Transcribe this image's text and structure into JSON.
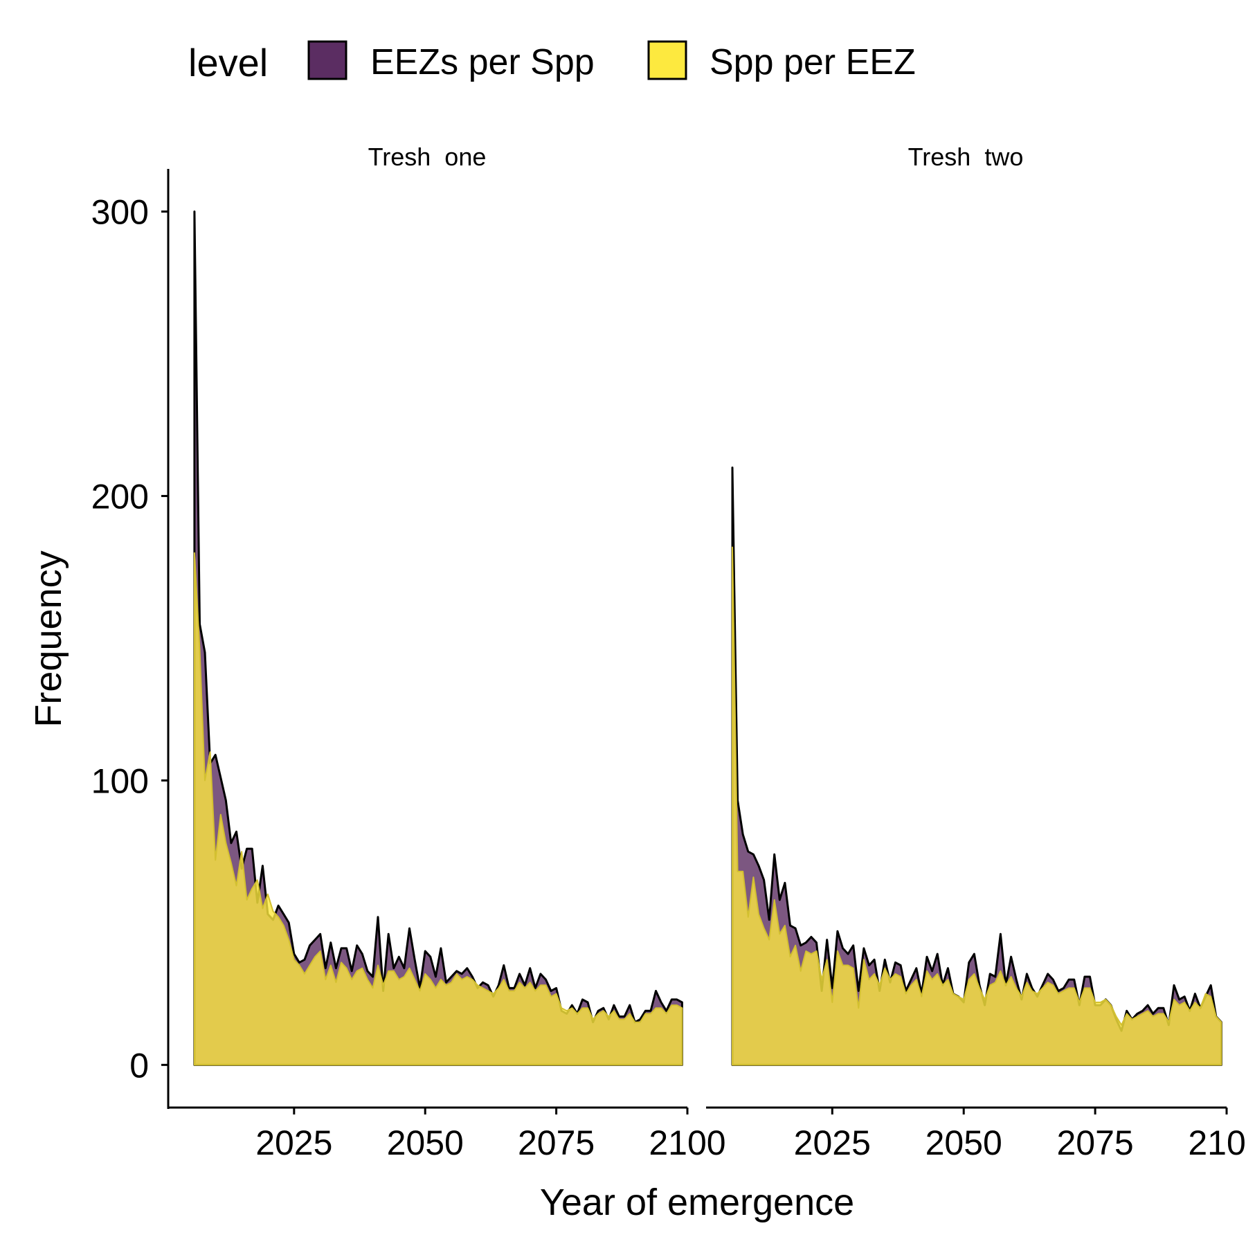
{
  "legend": {
    "title": "level",
    "items": [
      {
        "label": "EEZs per Spp",
        "color": "#5b2d62"
      },
      {
        "label": "Spp per EEZ",
        "color": "#fde93f"
      }
    ]
  },
  "chart_data": {
    "type": "area",
    "xlabel": "Year of emergence",
    "ylabel": "Frequency",
    "xlim": [
      2001,
      2100
    ],
    "ylim": [
      -15,
      315
    ],
    "x_ticks": [
      2025,
      2050,
      2075,
      2100
    ],
    "y_ticks": [
      0,
      100,
      200,
      300
    ],
    "grid": false,
    "legend_position": "top",
    "panels": [
      {
        "name": "Tresh  one",
        "x": [
          2006,
          2007,
          2008,
          2009,
          2010,
          2011,
          2012,
          2013,
          2014,
          2015,
          2016,
          2017,
          2018,
          2019,
          2020,
          2021,
          2022,
          2023,
          2024,
          2025,
          2026,
          2027,
          2028,
          2029,
          2030,
          2031,
          2032,
          2033,
          2034,
          2035,
          2036,
          2037,
          2038,
          2039,
          2040,
          2041,
          2042,
          2043,
          2044,
          2045,
          2046,
          2047,
          2048,
          2049,
          2050,
          2051,
          2052,
          2053,
          2054,
          2055,
          2056,
          2057,
          2058,
          2059,
          2060,
          2061,
          2062,
          2063,
          2064,
          2065,
          2066,
          2067,
          2068,
          2069,
          2070,
          2071,
          2072,
          2073,
          2074,
          2075,
          2076,
          2077,
          2078,
          2079,
          2080,
          2081,
          2082,
          2083,
          2084,
          2085,
          2086,
          2087,
          2088,
          2089,
          2090,
          2091,
          2092,
          2093,
          2094,
          2095,
          2096,
          2097,
          2098,
          2099
        ],
        "series": [
          {
            "name": "EEZs per Spp",
            "values": [
              300,
              155,
              145,
              106,
              109,
              101,
              93,
              78,
              82,
              69,
              76,
              76,
              57,
              70,
              53,
              51,
              56,
              53,
              50,
              39,
              36,
              37,
              42,
              44,
              46,
              34,
              43,
              34,
              41,
              41,
              33,
              42,
              39,
              33,
              31,
              52,
              26,
              46,
              34,
              38,
              34,
              48,
              37,
              27,
              40,
              38,
              31,
              41,
              29,
              31,
              33,
              32,
              34,
              31,
              27,
              29,
              28,
              24,
              28,
              35,
              27,
              27,
              32,
              28,
              34,
              27,
              32,
              30,
              26,
              27,
              19,
              18,
              21,
              18,
              23,
              22,
              15,
              19,
              20,
              16,
              21,
              17,
              17,
              21,
              15,
              16,
              19,
              19,
              26,
              22,
              19,
              23,
              23,
              22
            ]
          },
          {
            "name": "Spp per EEZ",
            "values": [
              180,
              146,
              100,
              110,
              72,
              88,
              78,
              71,
              63,
              75,
              58,
              62,
              65,
              55,
              60,
              54,
              52,
              49,
              44,
              37,
              35,
              32,
              35,
              38,
              40,
              30,
              35,
              29,
              36,
              34,
              30,
              33,
              34,
              30,
              27,
              35,
              28,
              33,
              33,
              30,
              31,
              34,
              30,
              26,
              32,
              30,
              27,
              30,
              28,
              29,
              32,
              30,
              31,
              30,
              28,
              27,
              26,
              25,
              27,
              30,
              26,
              26,
              29,
              27,
              29,
              26,
              28,
              28,
              24,
              25,
              20,
              19,
              20,
              18,
              20,
              20,
              16,
              18,
              19,
              17,
              19,
              16,
              16,
              18,
              15,
              15,
              18,
              18,
              20,
              20,
              18,
              21,
              21,
              20
            ]
          }
        ]
      },
      {
        "name": "Tresh  two",
        "x": [
          2006,
          2007,
          2008,
          2009,
          2010,
          2011,
          2012,
          2013,
          2014,
          2015,
          2016,
          2017,
          2018,
          2019,
          2020,
          2021,
          2022,
          2023,
          2024,
          2025,
          2026,
          2027,
          2028,
          2029,
          2030,
          2031,
          2032,
          2033,
          2034,
          2035,
          2036,
          2037,
          2038,
          2039,
          2040,
          2041,
          2042,
          2043,
          2044,
          2045,
          2046,
          2047,
          2048,
          2049,
          2050,
          2051,
          2052,
          2053,
          2054,
          2055,
          2056,
          2057,
          2058,
          2059,
          2060,
          2061,
          2062,
          2063,
          2064,
          2065,
          2066,
          2067,
          2068,
          2069,
          2070,
          2071,
          2072,
          2073,
          2074,
          2075,
          2076,
          2077,
          2078,
          2079,
          2080,
          2081,
          2082,
          2083,
          2084,
          2085,
          2086,
          2087,
          2088,
          2089,
          2090,
          2091,
          2092,
          2093,
          2094,
          2095,
          2096,
          2097,
          2098,
          2099
        ],
        "series": [
          {
            "name": "EEZs per Spp",
            "values": [
              210,
              93,
              81,
              75,
              74,
              70,
              65,
              51,
              74,
              58,
              64,
              49,
              48,
              42,
              43,
              45,
              43,
              26,
              44,
              27,
              47,
              41,
              39,
              42,
              26,
              41,
              35,
              37,
              26,
              37,
              29,
              36,
              35,
              26,
              30,
              34,
              25,
              38,
              33,
              39,
              28,
              34,
              25,
              24,
              22,
              36,
              39,
              28,
              21,
              32,
              31,
              46,
              28,
              38,
              30,
              23,
              32,
              27,
              24,
              28,
              32,
              30,
              26,
              27,
              30,
              30,
              21,
              31,
              31,
              21,
              21,
              23,
              21,
              16,
              12,
              19,
              16,
              18,
              19,
              21,
              18,
              20,
              20,
              14,
              28,
              23,
              24,
              19,
              25,
              20,
              24,
              28,
              17,
              15
            ]
          },
          {
            "name": "Spp per EEZ",
            "values": [
              182,
              68,
              68,
              52,
              66,
              53,
              48,
              44,
              58,
              46,
              49,
              38,
              42,
              33,
              40,
              39,
              40,
              30,
              37,
              22,
              40,
              35,
              35,
              34,
              20,
              37,
              30,
              32,
              28,
              34,
              30,
              32,
              31,
              25,
              28,
              30,
              24,
              33,
              30,
              32,
              28,
              30,
              25,
              24,
              23,
              30,
              32,
              27,
              23,
              28,
              29,
              33,
              28,
              31,
              27,
              24,
              29,
              26,
              25,
              27,
              29,
              28,
              25,
              26,
              27,
              27,
              22,
              27,
              27,
              22,
              22,
              23,
              21,
              17,
              14,
              18,
              16,
              17,
              18,
              19,
              17,
              18,
              18,
              15,
              23,
              21,
              22,
              19,
              22,
              20,
              25,
              24,
              17,
              15
            ]
          }
        ]
      }
    ]
  }
}
